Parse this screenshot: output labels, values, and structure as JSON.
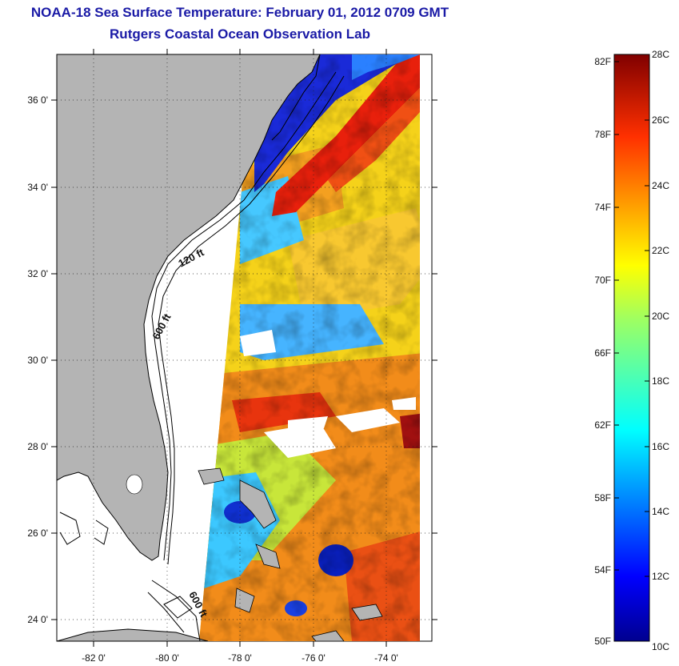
{
  "header": {
    "title": "NOAA-18 Sea Surface Temperature:  February 01, 2012 0709 GMT",
    "subtitle": "Rutgers Coastal Ocean Observation Lab"
  },
  "map": {
    "lon_ticks": [
      "-82 0'",
      "-80 0'",
      "-78 0'",
      "-76 0'",
      "-74 0'"
    ],
    "lat_ticks": [
      "36 0'",
      "34 0'",
      "32 0'",
      "30 0'",
      "28 0'",
      "26 0'",
      "24 0'"
    ],
    "contour_labels": [
      "120 ft",
      "600 ft",
      "600 ft"
    ],
    "land_color": "#b4b4b4",
    "grid": "dotted"
  },
  "colorbar": {
    "f_labels": [
      "82F",
      "78F",
      "74F",
      "70F",
      "66F",
      "62F",
      "58F",
      "54F",
      "50F"
    ],
    "c_labels": [
      "28C",
      "26C",
      "24C",
      "22C",
      "20C",
      "18C",
      "16C",
      "14C",
      "12C",
      "10C"
    ],
    "range_c": [
      10,
      28
    ],
    "colormap": "jet"
  }
}
